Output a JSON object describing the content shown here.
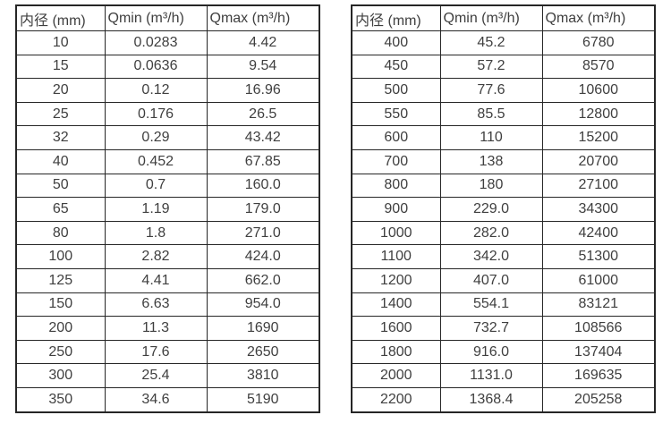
{
  "colors": {
    "border": "#262626",
    "text": "#3f3f3f",
    "background": "#ffffff"
  },
  "chart_data": [
    {
      "type": "table",
      "title": "",
      "columns": [
        "内径 (mm)",
        "Qmin (m³/h)",
        "Qmax (m³/h)"
      ],
      "rows": [
        [
          "10",
          "0.0283",
          "4.42"
        ],
        [
          "15",
          "0.0636",
          "9.54"
        ],
        [
          "20",
          "0.12",
          "16.96"
        ],
        [
          "25",
          "0.176",
          "26.5"
        ],
        [
          "32",
          "0.29",
          "43.42"
        ],
        [
          "40",
          "0.452",
          "67.85"
        ],
        [
          "50",
          "0.7",
          "160.0"
        ],
        [
          "65",
          "1.19",
          "179.0"
        ],
        [
          "80",
          "1.8",
          "271.0"
        ],
        [
          "100",
          "2.82",
          "424.0"
        ],
        [
          "125",
          "4.41",
          "662.0"
        ],
        [
          "150",
          "6.63",
          "954.0"
        ],
        [
          "200",
          "11.3",
          "1690"
        ],
        [
          "250",
          "17.6",
          "2650"
        ],
        [
          "300",
          "25.4",
          "3810"
        ],
        [
          "350",
          "34.6",
          "5190"
        ]
      ]
    },
    {
      "type": "table",
      "title": "",
      "columns": [
        "内径 (mm)",
        "Qmin (m³/h)",
        "Qmax (m³/h)"
      ],
      "rows": [
        [
          "400",
          "45.2",
          "6780"
        ],
        [
          "450",
          "57.2",
          "8570"
        ],
        [
          "500",
          "77.6",
          "10600"
        ],
        [
          "550",
          "85.5",
          "12800"
        ],
        [
          "600",
          "110",
          "15200"
        ],
        [
          "700",
          "138",
          "20700"
        ],
        [
          "800",
          "180",
          "27100"
        ],
        [
          "900",
          "229.0",
          "34300"
        ],
        [
          "1000",
          "282.0",
          "42400"
        ],
        [
          "1100",
          "342.0",
          "51300"
        ],
        [
          "1200",
          "407.0",
          "61000"
        ],
        [
          "1400",
          "554.1",
          "83121"
        ],
        [
          "1600",
          "732.7",
          "108566"
        ],
        [
          "1800",
          "916.0",
          "137404"
        ],
        [
          "2000",
          "1131.0",
          "169635"
        ],
        [
          "2200",
          "1368.4",
          "205258"
        ]
      ]
    }
  ]
}
